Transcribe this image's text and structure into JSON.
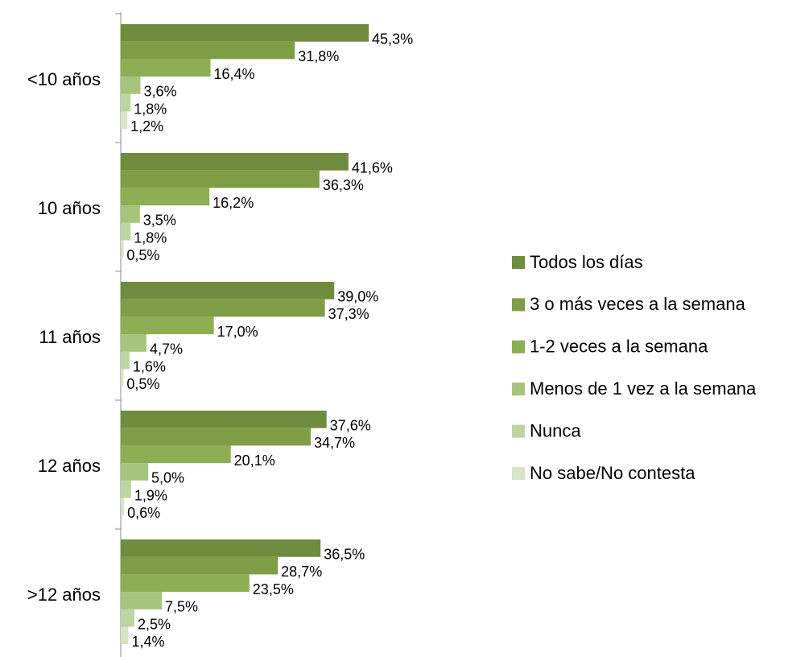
{
  "chart_data": {
    "type": "bar",
    "orientation": "horizontal",
    "categories": [
      "<10 años",
      "10 años",
      "11 años",
      "12 años",
      ">12 años"
    ],
    "series": [
      {
        "name": "Todos los días",
        "color": "#6f8c3e",
        "values": [
          45.3,
          41.6,
          39.0,
          37.6,
          36.5
        ],
        "value_labels": [
          "45,3%",
          "41,6%",
          "39,0%",
          "37,6%",
          "36,5%"
        ]
      },
      {
        "name": "3 o más veces a la semana",
        "color": "#7f9d47",
        "values": [
          31.8,
          36.3,
          37.3,
          34.7,
          28.7
        ],
        "value_labels": [
          "31,8%",
          "36,3%",
          "37,3%",
          "34,7%",
          "28,7%"
        ]
      },
      {
        "name": "1-2 veces a la semana",
        "color": "#8dae52",
        "values": [
          16.4,
          16.2,
          17.0,
          20.1,
          23.5
        ],
        "value_labels": [
          "16,4%",
          "16,2%",
          "17,0%",
          "20,1%",
          "23,5%"
        ]
      },
      {
        "name": "Menos de 1 vez a la semana",
        "color": "#a6c47c",
        "values": [
          3.6,
          3.5,
          4.7,
          5.0,
          7.5
        ],
        "value_labels": [
          "3,6%",
          "3,5%",
          "4,7%",
          "5,0%",
          "7,5%"
        ]
      },
      {
        "name": "Nunca",
        "color": "#bed5a3",
        "values": [
          1.8,
          1.8,
          1.6,
          1.9,
          2.5
        ],
        "value_labels": [
          "1,8%",
          "1,8%",
          "1,6%",
          "1,9%",
          "2,5%"
        ]
      },
      {
        "name": "No sabe/No contesta",
        "color": "#d6e4c7",
        "values": [
          1.2,
          0.5,
          0.5,
          0.6,
          1.4
        ],
        "value_labels": [
          "1,2%",
          "0,5%",
          "0,5%",
          "0,6%",
          "1,4%"
        ]
      }
    ],
    "legend": "right"
  }
}
